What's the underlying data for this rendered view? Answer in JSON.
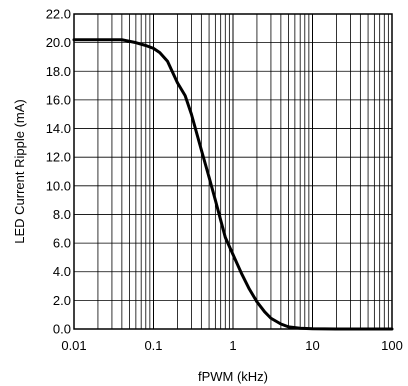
{
  "chart_data": {
    "type": "line",
    "title": "",
    "xlabel": "fPWM (kHz)",
    "ylabel": "LED Current Ripple (mA)",
    "x_scale": "log",
    "xlim": [
      0.01,
      100
    ],
    "ylim": [
      0,
      22
    ],
    "grid": true,
    "x_ticks": [
      "0.01",
      "0.1",
      "1",
      "10",
      "100"
    ],
    "y_ticks": [
      "0.0",
      "2.0",
      "4.0",
      "6.0",
      "8.0",
      "10.0",
      "12.0",
      "14.0",
      "16.0",
      "18.0",
      "20.0",
      "22.0"
    ],
    "series": [
      {
        "color": "#000000",
        "x": [
          0.01,
          0.02,
          0.04,
          0.06,
          0.08,
          0.1,
          0.12,
          0.15,
          0.2,
          0.25,
          0.3,
          0.4,
          0.5,
          0.6,
          0.7,
          0.8,
          1.0,
          1.3,
          1.6,
          2.0,
          2.5,
          3.0,
          4.0,
          5.0,
          7.0,
          10.0,
          20.0,
          50.0,
          100.0
        ],
        "y": [
          20.2,
          20.2,
          20.2,
          20.0,
          19.8,
          19.6,
          19.3,
          18.7,
          17.2,
          16.3,
          15.0,
          12.5,
          10.6,
          9.0,
          7.6,
          6.4,
          5.2,
          3.8,
          2.8,
          1.9,
          1.2,
          0.75,
          0.35,
          0.15,
          0.05,
          0.02,
          0.0,
          0.0,
          0.0
        ]
      }
    ]
  }
}
